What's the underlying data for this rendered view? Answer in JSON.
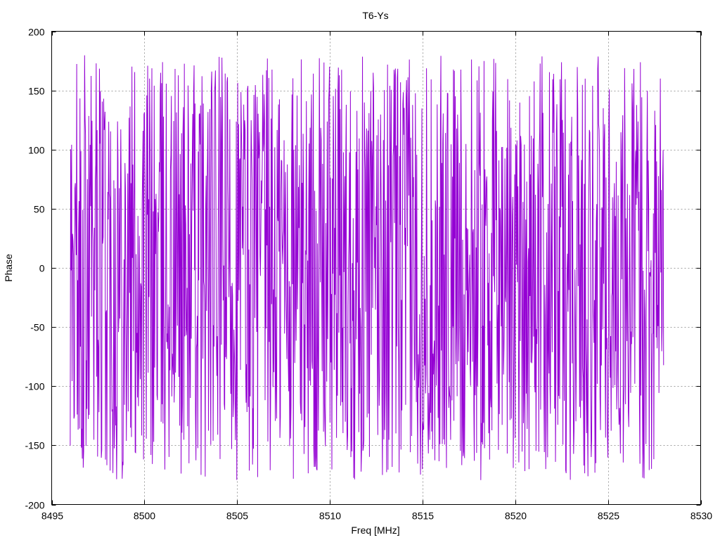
{
  "chart_data": {
    "type": "line",
    "title": "T6-Ys",
    "xlabel": "Freq [MHz]",
    "ylabel": "Phase",
    "xlim": [
      8495,
      8530
    ],
    "ylim": [
      -200,
      200
    ],
    "grid": true,
    "series": [
      {
        "color": "#9400d3",
        "x_start": 8496.0,
        "x_end": 8528.0,
        "points": 1280,
        "values_min": -180,
        "values_max": 180,
        "seed": 6
      }
    ],
    "xticks": [
      "8495",
      "8500",
      "8505",
      "8510",
      "8515",
      "8520",
      "8525",
      "8530"
    ],
    "yticks": [
      "200",
      "150",
      "100",
      "50",
      "0",
      "-50",
      "-100",
      "-150",
      "-200"
    ]
  }
}
